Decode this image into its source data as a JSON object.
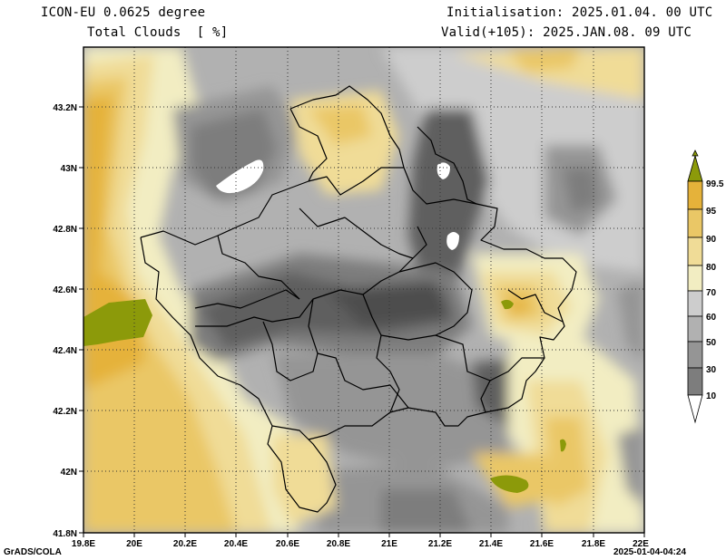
{
  "header": {
    "model": "ICON-EU 0.0625 degree",
    "variable": "Total Clouds  [ %]",
    "init": "Initialisation: 2025.01.04. 00 UTC",
    "valid": "Valid(+105): 2025.JAN.08. 09 UTC"
  },
  "map": {
    "lon_ticks": [
      "19.8E",
      "20E",
      "20.2E",
      "20.4E",
      "20.6E",
      "20.8E",
      "21E",
      "21.2E",
      "21.4E",
      "21.6E",
      "21.8E",
      "22E"
    ],
    "lat_ticks": [
      "43.2N",
      "43N",
      "42.8N",
      "42.6N",
      "42.4N",
      "42.2N",
      "42N",
      "41.8N"
    ]
  },
  "colorbar": {
    "levels": [
      "99.5",
      "95",
      "90",
      "80",
      "70",
      "60",
      "50",
      "30",
      "10"
    ],
    "colors": [
      "#8c9a0a",
      "#e5b23a",
      "#eac766",
      "#f0dc97",
      "#f2edc2",
      "#cdcdcd",
      "#b1b1b1",
      "#959595",
      "#7d7d7d",
      "#5f5f5f",
      "#ffffff"
    ]
  },
  "footer": {
    "left": "GrADS/COLA",
    "right": "2025-01-04-04:24"
  }
}
